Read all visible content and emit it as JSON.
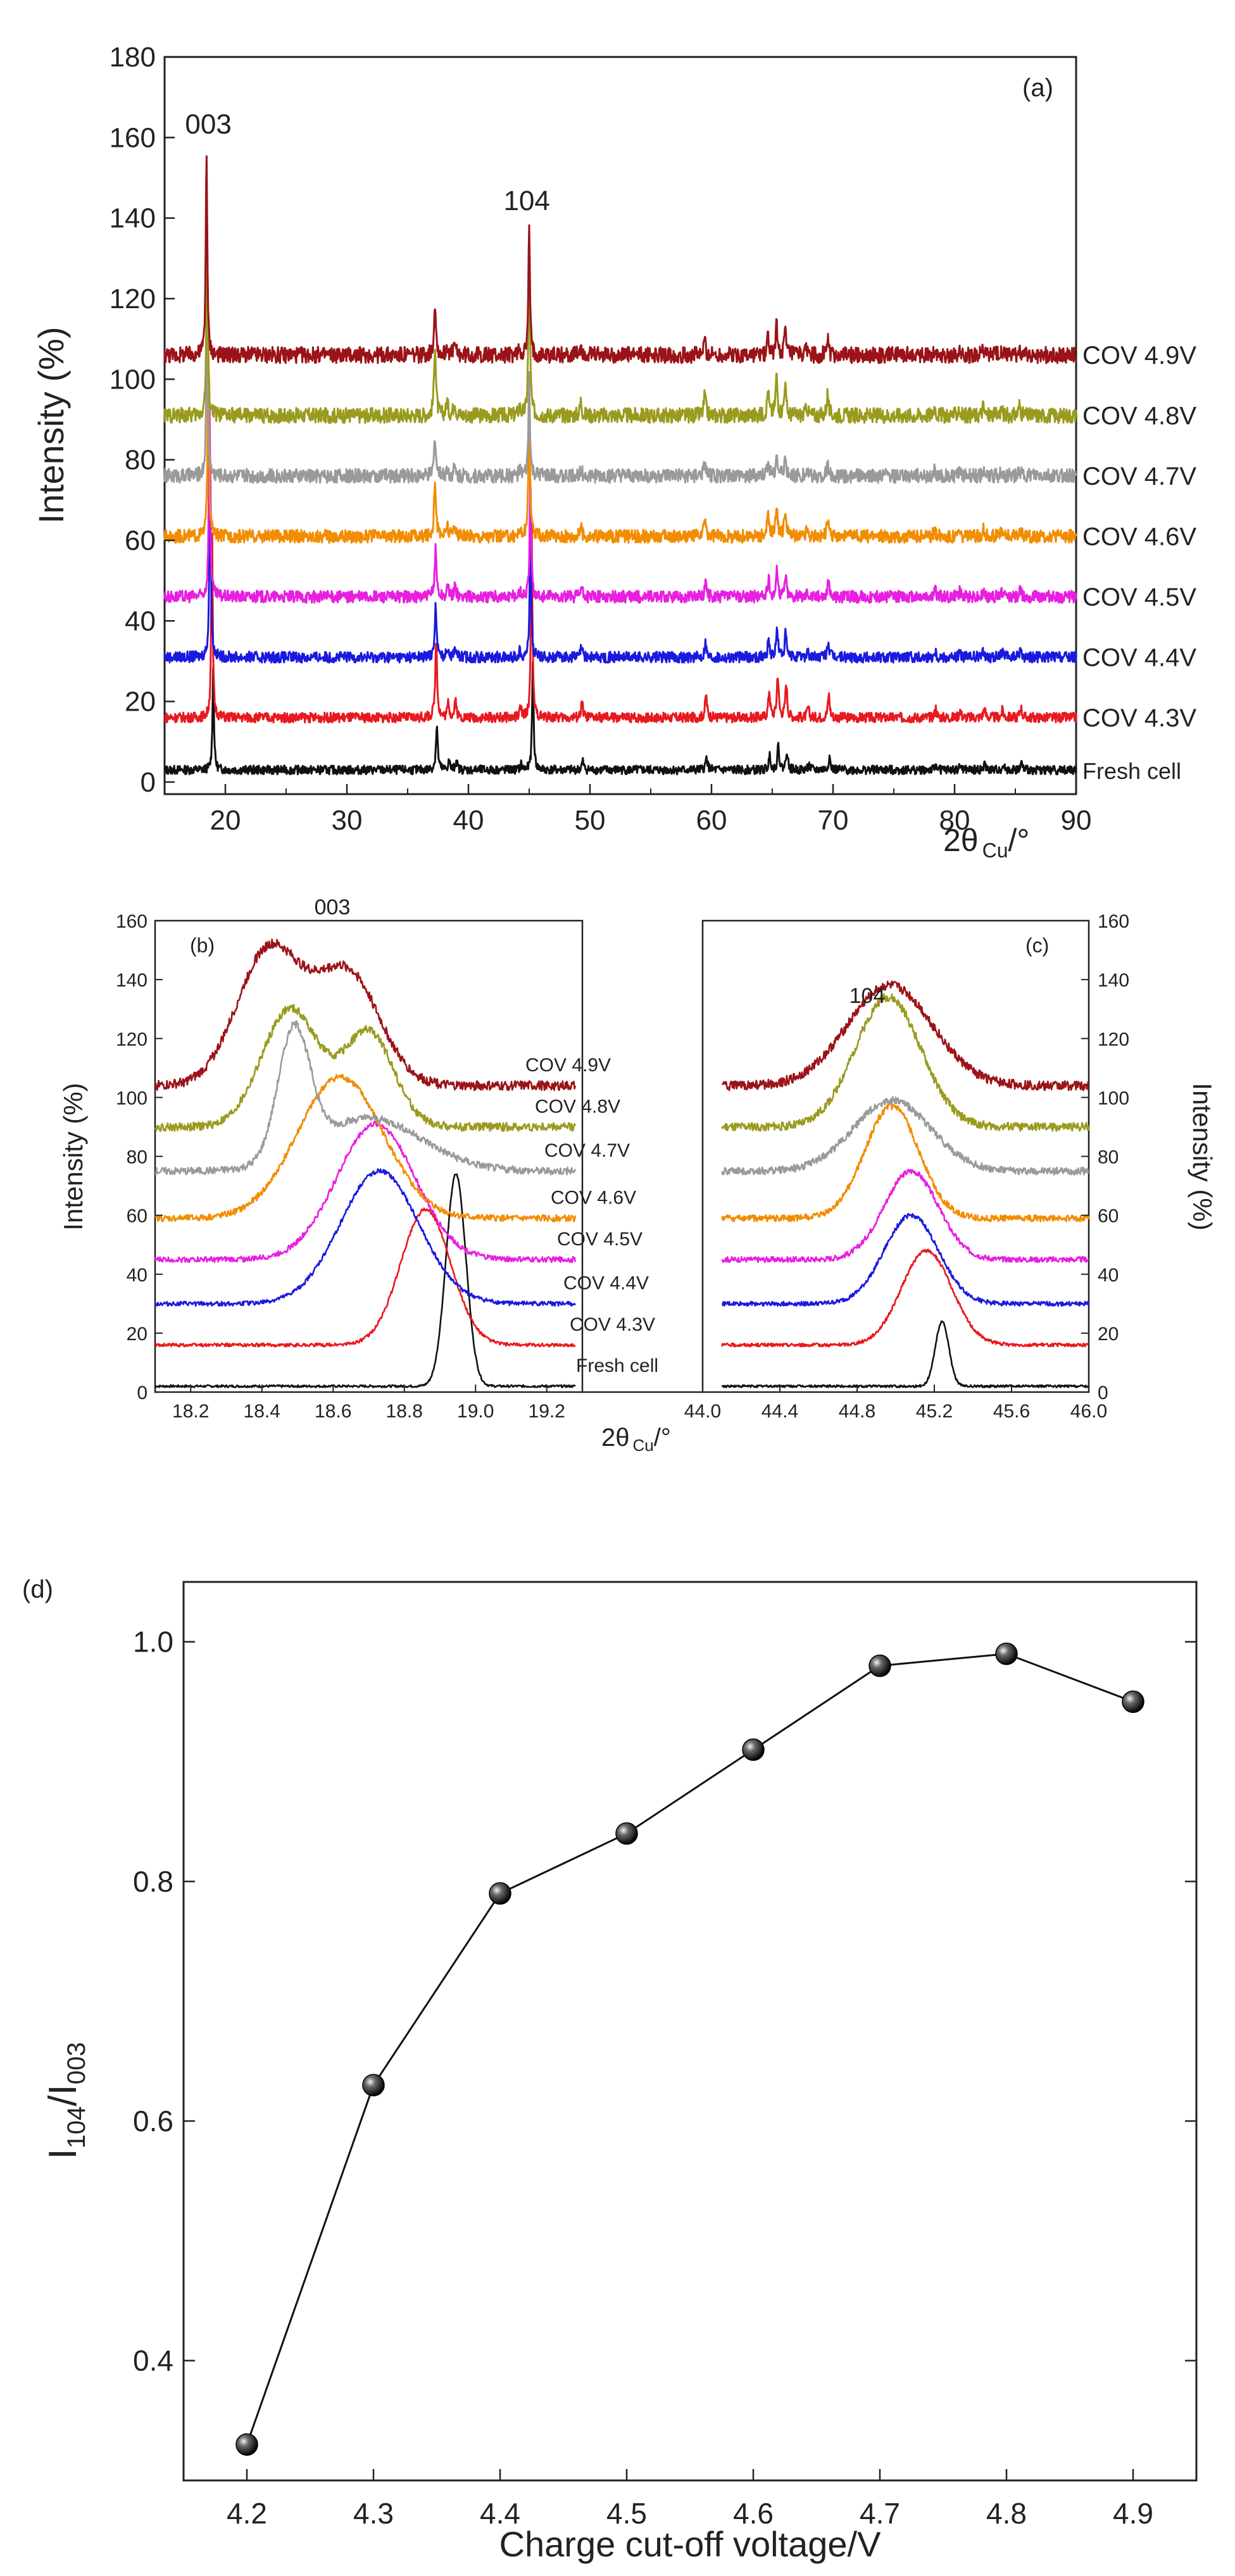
{
  "chart_data": [
    {
      "id": "a",
      "type": "line",
      "panel_label": "(a)",
      "xlabel_main": "2θ",
      "xlabel_sub": "Cu",
      "xlabel_suffix": "/°",
      "ylabel": "Intensity (%)",
      "xlim": [
        15,
        90
      ],
      "ylim": [
        -3,
        180
      ],
      "xticks": [
        20,
        30,
        40,
        50,
        60,
        70,
        80,
        90
      ],
      "yticks": [
        0,
        20,
        40,
        60,
        80,
        100,
        120,
        140,
        160,
        180
      ],
      "peak_labels": [
        {
          "text": "003",
          "x": 18.6,
          "y": 161
        },
        {
          "text": "104",
          "x": 44.8,
          "y": 142
        }
      ],
      "series": [
        {
          "name": "Fresh cell",
          "color": "#111111",
          "baseline": 3,
          "p003": 19.0,
          "h003": 25,
          "p104": 45.3,
          "h104": 27
        },
        {
          "name": "COV 4.3V",
          "color": "#e8191f",
          "baseline": 16,
          "p003": 18.9,
          "h003": 48,
          "p104": 45.2,
          "h104": 48
        },
        {
          "name": "COV 4.4V",
          "color": "#1a1adf",
          "baseline": 31,
          "p003": 18.75,
          "h003": 50,
          "p104": 45.1,
          "h104": 32
        },
        {
          "name": "COV 4.5V",
          "color": "#e81fe0",
          "baseline": 46,
          "p003": 18.7,
          "h003": 48,
          "p104": 45.1,
          "h104": 30
        },
        {
          "name": "COV 4.6V",
          "color": "#f28c00",
          "baseline": 61,
          "p003": 18.6,
          "h003": 48,
          "p104": 45.0,
          "h104": 37
        },
        {
          "name": "COV 4.7V",
          "color": "#9a9a9a",
          "baseline": 76,
          "p003": 18.5,
          "h003": 47,
          "p104": 45.0,
          "h104": 25
        },
        {
          "name": "COV 4.8V",
          "color": "#9a9a1e",
          "baseline": 91,
          "p003": 18.5,
          "h003": 47,
          "p104": 45.0,
          "h104": 45
        },
        {
          "name": "COV 4.9V",
          "color": "#9a1318",
          "baseline": 106,
          "p003": 18.45,
          "h003": 52,
          "p104": 45.0,
          "h104": 33
        }
      ]
    },
    {
      "id": "b",
      "type": "line",
      "panel_label": "(b)",
      "peak_label": "003",
      "ylabel": "Intensity (%)",
      "xlim": [
        18.1,
        19.3
      ],
      "ylim": [
        0,
        160
      ],
      "xticks": [
        18.2,
        18.4,
        18.6,
        18.8,
        19.0,
        19.2
      ],
      "yticks": [
        0,
        20,
        40,
        60,
        80,
        100,
        120,
        140,
        160
      ],
      "xlabel_main": "2θ",
      "xlabel_sub": "Cu",
      "xlabel_suffix": "/°",
      "series": [
        {
          "name": "Fresh cell",
          "color": "#111111",
          "baseline": 2,
          "peaks": [
            [
              18.945,
              72,
              0.028
            ]
          ]
        },
        {
          "name": "COV 4.3V",
          "color": "#e8191f",
          "baseline": 16,
          "peaks": [
            [
              18.86,
              46,
              0.07
            ]
          ]
        },
        {
          "name": "COV 4.4V",
          "color": "#1a1adf",
          "baseline": 30,
          "peaks": [
            [
              18.73,
              45,
              0.11
            ]
          ]
        },
        {
          "name": "COV 4.5V",
          "color": "#e81fe0",
          "baseline": 45,
          "peaks": [
            [
              18.72,
              46,
              0.11
            ]
          ]
        },
        {
          "name": "COV 4.6V",
          "color": "#f28c00",
          "baseline": 59,
          "peaks": [
            [
              18.62,
              48,
              0.12
            ]
          ]
        },
        {
          "name": "COV 4.7V",
          "color": "#9a9a9a",
          "baseline": 75,
          "peaks": [
            [
              18.49,
              43,
              0.045
            ],
            [
              18.7,
              18,
              0.15
            ]
          ]
        },
        {
          "name": "COV 4.8V",
          "color": "#9a9a1e",
          "baseline": 90,
          "peaks": [
            [
              18.48,
              40,
              0.08
            ],
            [
              18.7,
              32,
              0.07
            ]
          ]
        },
        {
          "name": "COV 4.9V",
          "color": "#9a1318",
          "baseline": 104,
          "peaks": [
            [
              18.42,
              46,
              0.09
            ],
            [
              18.64,
              38,
              0.09
            ]
          ]
        }
      ]
    },
    {
      "id": "c",
      "type": "line",
      "panel_label": "(c)",
      "peak_label": "104",
      "ylabel": "Intensity (%)",
      "xlim": [
        44.0,
        46.0
      ],
      "ylim": [
        0,
        160
      ],
      "xticks": [
        44.0,
        44.4,
        44.8,
        45.2,
        45.6,
        46.0
      ],
      "yticks": [
        0,
        20,
        40,
        60,
        80,
        100,
        120,
        140,
        160
      ],
      "series": [
        {
          "name": "Fresh cell",
          "color": "#111111",
          "baseline": 2,
          "peaks": [
            [
              45.24,
              22,
              0.035
            ]
          ]
        },
        {
          "name": "COV 4.3V",
          "color": "#e8191f",
          "baseline": 16,
          "peaks": [
            [
              45.16,
              32,
              0.13
            ]
          ]
        },
        {
          "name": "COV 4.4V",
          "color": "#1a1adf",
          "baseline": 30,
          "peaks": [
            [
              45.08,
              30,
              0.14
            ]
          ]
        },
        {
          "name": "COV 4.5V",
          "color": "#e81fe0",
          "baseline": 45,
          "peaks": [
            [
              45.08,
              30,
              0.14
            ]
          ]
        },
        {
          "name": "COV 4.6V",
          "color": "#f28c00",
          "baseline": 59,
          "peaks": [
            [
              44.98,
              38,
              0.14
            ]
          ]
        },
        {
          "name": "COV 4.7V",
          "color": "#9a9a9a",
          "baseline": 75,
          "peaks": [
            [
              44.98,
              24,
              0.2
            ]
          ]
        },
        {
          "name": "COV 4.8V",
          "color": "#9a9a1e",
          "baseline": 90,
          "peaks": [
            [
              44.96,
              44,
              0.17
            ]
          ]
        },
        {
          "name": "COV 4.9V",
          "color": "#9a1318",
          "baseline": 104,
          "peaks": [
            [
              44.97,
              34,
              0.22
            ]
          ]
        }
      ]
    },
    {
      "id": "d",
      "type": "scatter",
      "panel_label": "(d)",
      "xlabel": "Charge cut-off voltage/V",
      "ylabel_main": "I",
      "ylabel_sub1": "104",
      "ylabel_mid": "/I",
      "ylabel_sub2": "003",
      "xlim": [
        4.15,
        4.95
      ],
      "ylim": [
        0.3,
        1.05
      ],
      "xticks": [
        4.2,
        4.3,
        4.4,
        4.5,
        4.6,
        4.7,
        4.8,
        4.9
      ],
      "yticks": [
        0.4,
        0.6,
        0.8,
        1.0
      ],
      "x": [
        4.2,
        4.3,
        4.4,
        4.5,
        4.6,
        4.7,
        4.8,
        4.9
      ],
      "y": [
        0.33,
        0.63,
        0.79,
        0.84,
        0.91,
        0.98,
        0.99,
        0.95
      ]
    }
  ]
}
